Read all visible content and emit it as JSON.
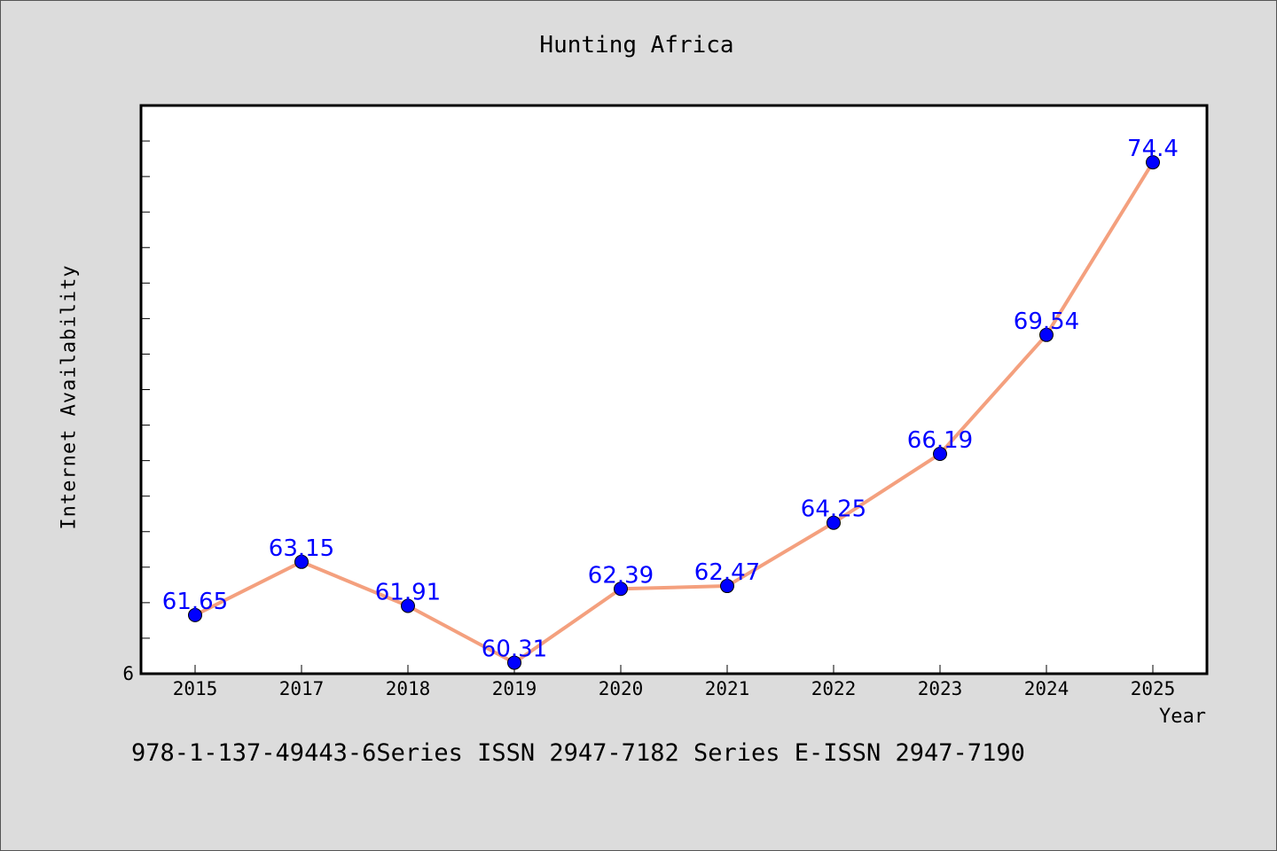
{
  "chart_data": {
    "type": "line",
    "title": "Hunting Africa",
    "xlabel": "Year",
    "ylabel": "Internet Availability",
    "categories": [
      "2015",
      "2017",
      "2018",
      "2019",
      "2020",
      "2021",
      "2022",
      "2023",
      "2024",
      "2025"
    ],
    "series": [
      {
        "values": [
          61.65,
          63.15,
          61.91,
          60.31,
          62.39,
          62.47,
          64.25,
          66.19,
          69.54,
          74.4
        ],
        "labels": [
          "61.65",
          "63.15",
          "61.91",
          "60.31",
          "62.39",
          "62.47",
          "64.25",
          "66.19",
          "69.54",
          "74.4"
        ],
        "line_color": "#f4a07e",
        "marker_color": "#0000ff",
        "label_color": "#0000ff"
      }
    ],
    "y_tick_label": "6",
    "ylim": [
      60,
      76
    ],
    "grid": false,
    "legend": "none"
  },
  "footer_text": "978-1-137-49443-6Series ISSN 2947-7182 Series E-ISSN 2947-7190",
  "colors": {
    "background": "#dcdcdc",
    "plot_background": "#ffffff"
  }
}
